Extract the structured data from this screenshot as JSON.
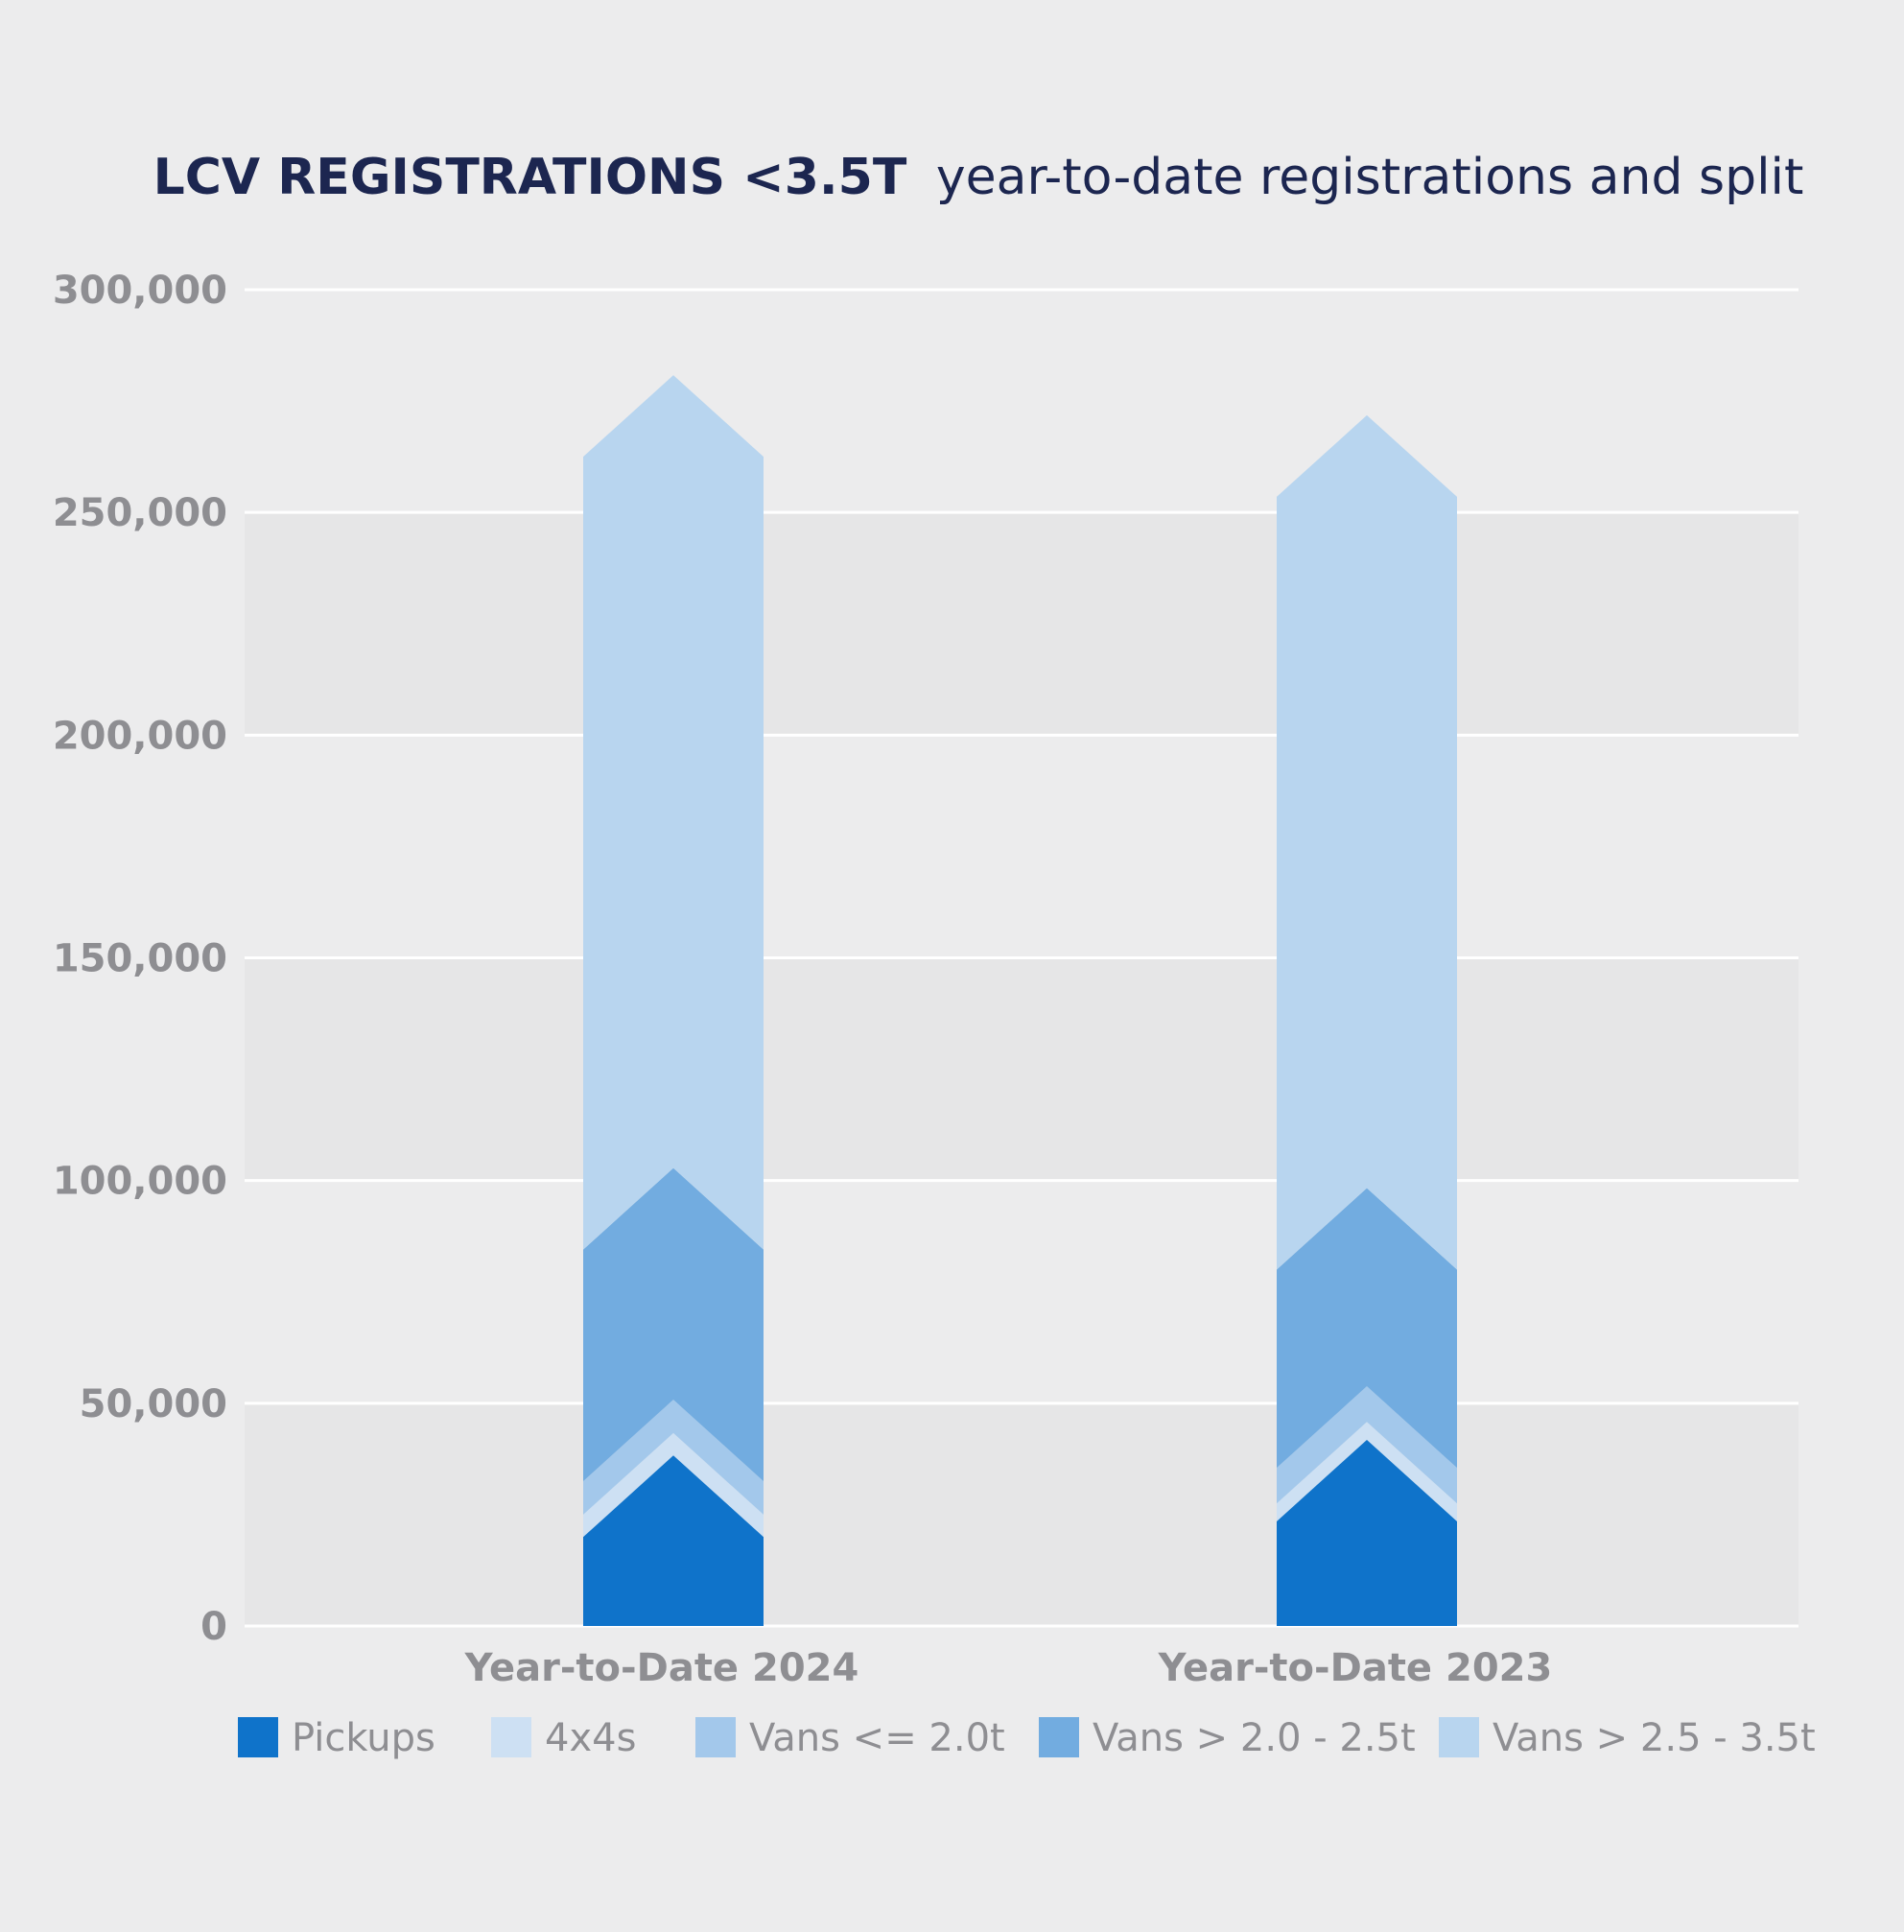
{
  "chart_data": {
    "type": "bar",
    "stacked": true,
    "title": "LCV REGISTRATIONS <3.5T",
    "subtitle": "year-to-date registrations and split",
    "categories": [
      "Year-to-Date 2024",
      "Year-to-Date 2023"
    ],
    "series": [
      {
        "name": "Pickups",
        "color": "#0f73ca",
        "values": [
          20000,
          23500
        ]
      },
      {
        "name": "4x4s",
        "color": "#cde0f3",
        "values": [
          5000,
          4000
        ]
      },
      {
        "name": "Vans <= 2.0t",
        "color": "#a3c8eb",
        "values": [
          7500,
          8000
        ]
      },
      {
        "name": "Vans > 2.0 - 2.5t",
        "color": "#72ace0",
        "values": [
          52000,
          44500
        ]
      },
      {
        "name": "Vans > 2.5 - 3.5t",
        "color": "#b8d5ef",
        "values": [
          178000,
          173500
        ]
      }
    ],
    "ylim": [
      0,
      300000
    ],
    "yticks": [
      0,
      50000,
      100000,
      150000,
      200000,
      250000,
      300000
    ],
    "ytick_labels": [
      "0",
      "50,000",
      "100,000",
      "150,000",
      "200,000",
      "250,000",
      "300,000"
    ],
    "grid": true,
    "legend": "bottom"
  }
}
